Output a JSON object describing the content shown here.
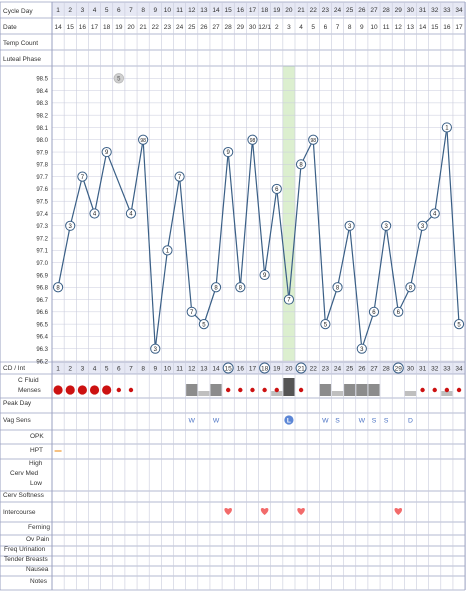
{
  "chart_data": {
    "type": "line",
    "cycle_day_label": "Cycle Day",
    "date_label": "Date",
    "cycle_days": [
      "1",
      "2",
      "3",
      "4",
      "5",
      "6",
      "7",
      "8",
      "9",
      "10",
      "11",
      "12",
      "13",
      "14",
      "15",
      "16",
      "17",
      "18",
      "19",
      "20",
      "21",
      "22",
      "23",
      "24",
      "25",
      "26",
      "27",
      "28",
      "29",
      "30",
      "31",
      "32",
      "33",
      "34"
    ],
    "dates": [
      "14",
      "15",
      "16",
      "17",
      "18",
      "19",
      "20",
      "21",
      "22",
      "23",
      "24",
      "25",
      "26",
      "27",
      "28",
      "29",
      "30",
      "12/1",
      "2",
      "3",
      "4",
      "5",
      "6",
      "7",
      "8",
      "9",
      "10",
      "11",
      "12",
      "13",
      "14",
      "15",
      "16",
      "17"
    ],
    "temps": [
      96.8,
      97.3,
      97.7,
      97.4,
      97.9,
      null,
      97.4,
      98.0,
      96.3,
      97.1,
      97.7,
      96.6,
      96.5,
      96.8,
      97.9,
      96.8,
      98.0,
      96.9,
      97.6,
      96.7,
      97.8,
      98.0,
      96.5,
      96.8,
      97.3,
      96.3,
      96.6,
      97.3,
      96.6,
      96.8,
      97.3,
      97.4,
      98.1,
      96.5
    ],
    "temp_minutes": [
      "8",
      "3",
      "7",
      "4",
      "9",
      "",
      "4",
      "98",
      "3",
      "1",
      "7",
      "7",
      "5",
      "8",
      "9",
      "8",
      "98",
      "9",
      "6",
      "7",
      "8",
      "98",
      "5",
      "8",
      "3",
      "3",
      "6",
      "3",
      "6",
      "8",
      "3",
      "4",
      "1",
      "5"
    ],
    "excluded_temp": {
      "day": 6,
      "temp": 98.5,
      "label": "5"
    },
    "y_ticks": [
      "98.5",
      "98.4",
      "98.3",
      "98.2",
      "98.1",
      "98.0",
      "97.9",
      "97.8",
      "97.7",
      "97.6",
      "97.5",
      "97.4",
      "97.3",
      "97.2",
      "97.1",
      "97.0",
      "96.9",
      "96.8",
      "96.7",
      "96.6",
      "96.5",
      "96.4",
      "96.3",
      "96.2"
    ],
    "ylim": [
      96.2,
      98.6
    ],
    "highlight_day": 20,
    "circled_cd": [
      "15",
      "18",
      "21",
      "29"
    ],
    "cervical_fluid": [
      0,
      0,
      0,
      0,
      0,
      0,
      0,
      0,
      0,
      0,
      0,
      2,
      1,
      2,
      0,
      0,
      0,
      0,
      1,
      3,
      0,
      0,
      2,
      1,
      2,
      2,
      2,
      0,
      0,
      1,
      0,
      0,
      1,
      0
    ],
    "menses": [
      3,
      3,
      3,
      3,
      3,
      1,
      1,
      0,
      0,
      0,
      0,
      0,
      0,
      0,
      1,
      1,
      1,
      1,
      1,
      0,
      1,
      0,
      0,
      0,
      0,
      0,
      0,
      0,
      0,
      0,
      1,
      1,
      1,
      1
    ],
    "vag_sens": [
      "",
      "",
      "",
      "",
      "",
      "",
      "",
      "",
      "",
      "",
      "",
      "W",
      "",
      "W",
      "",
      "",
      "",
      "",
      "",
      "L",
      "",
      "",
      "W",
      "S",
      "",
      "W",
      "S",
      "S",
      "",
      "D",
      "",
      "",
      "",
      ""
    ],
    "intercourse": [
      false,
      false,
      false,
      false,
      false,
      false,
      false,
      false,
      false,
      false,
      false,
      false,
      false,
      false,
      true,
      false,
      false,
      true,
      false,
      false,
      true,
      false,
      false,
      false,
      false,
      false,
      false,
      false,
      true,
      false,
      false,
      false,
      false,
      false
    ],
    "hpt_days": [
      1
    ],
    "colors": {
      "line": "#3a5f86",
      "circle_fill": "#ffffff",
      "grid": "#c9cbdc",
      "border": "#9aa0c0",
      "highlight": "#dcefcf",
      "menses": "#cc1111",
      "fluid": "#8c8c8c",
      "fluid_light": "#bfbfbf",
      "heart": "#f26b6b",
      "vag": "#4a72c4",
      "vag_L": "#5b86d6",
      "hpt": "#f0a040",
      "header_bg": "#e6e8f4",
      "circle_grey": "#d0d0d0"
    }
  },
  "rows": {
    "temp_count": "Temp Count",
    "luteal_phase": "Luteal Phase",
    "cd_int": "CD / Int",
    "c_fluid": "C Fluid",
    "menses": "Menses",
    "peak_day": "Peak Day",
    "vag_sens": "Vag Sens",
    "opk": "OPK",
    "hpt": "HPT",
    "cervix_high": "High",
    "cervix_med": "Cerv Med",
    "cervix_low": "Low",
    "cerv_softness": "Cerv Softness",
    "intercourse": "Intercourse",
    "ferning": "Ferning",
    "ov_pain": "Ov Pain",
    "freq_urination": "Freq Urination",
    "tender_breasts": "Tender Breasts",
    "nausea": "Nausea",
    "notes": "Notes"
  }
}
